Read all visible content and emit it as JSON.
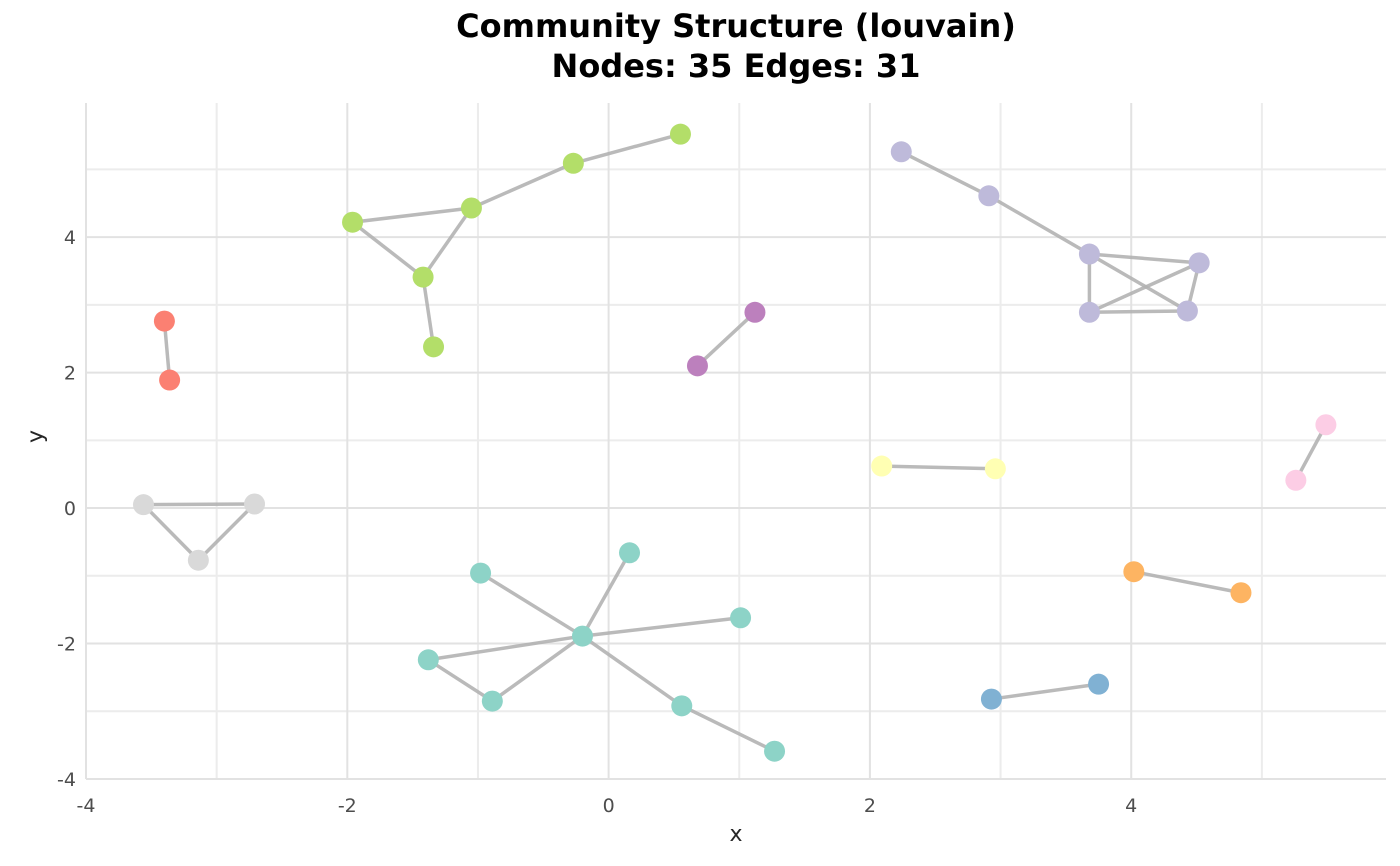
{
  "figure": {
    "title": "Community Structure (louvain)",
    "subtitle": "Nodes: 35 Edges: 31",
    "xlabel": "x",
    "ylabel": "y"
  },
  "chart_data": {
    "type": "scatter",
    "subtype": "network_graph",
    "title": "Community Structure (louvain)",
    "subtitle": "Nodes: 35 Edges: 31",
    "node_count": 35,
    "edge_count": 31,
    "xlabel": "x",
    "ylabel": "y",
    "xlim": [
      -4,
      5.95
    ],
    "ylim": [
      -4,
      5.98
    ],
    "xticks": [
      -4,
      -2,
      0,
      2,
      4
    ],
    "yticks": [
      -4,
      -2,
      0,
      2,
      4
    ],
    "grid": {
      "on": true,
      "interval": 1,
      "major_interval": 2,
      "major_color": "#e2e2e2",
      "minor_color": "#ececec"
    },
    "background_color": "#ffffff",
    "edge_color": "#b3b3b3",
    "communities": [
      {
        "name": "community-0-green",
        "color": "#b3de69"
      },
      {
        "name": "community-1-purple",
        "color": "#bc80bd"
      },
      {
        "name": "community-2-salmon",
        "color": "#fb8072"
      },
      {
        "name": "community-3-gray",
        "color": "#d9d9d9"
      },
      {
        "name": "community-4-teal",
        "color": "#8dd3c7"
      },
      {
        "name": "community-5-lavender",
        "color": "#bebada"
      },
      {
        "name": "community-6-yellow",
        "color": "#ffffb3"
      },
      {
        "name": "community-7-orange",
        "color": "#fdb462"
      },
      {
        "name": "community-8-blue",
        "color": "#80b1d3"
      },
      {
        "name": "community-9-pink",
        "color": "#fccde5"
      }
    ],
    "nodes": [
      {
        "x": 0.55,
        "y": 5.52,
        "c": 0
      },
      {
        "x": -0.27,
        "y": 5.09,
        "c": 0
      },
      {
        "x": -1.05,
        "y": 4.43,
        "c": 0
      },
      {
        "x": -1.96,
        "y": 4.22,
        "c": 0
      },
      {
        "x": -1.42,
        "y": 3.41,
        "c": 0
      },
      {
        "x": -1.34,
        "y": 2.38,
        "c": 0
      },
      {
        "x": 1.12,
        "y": 2.89,
        "c": 1
      },
      {
        "x": 0.68,
        "y": 2.1,
        "c": 1
      },
      {
        "x": -3.4,
        "y": 2.76,
        "c": 2
      },
      {
        "x": -3.36,
        "y": 1.89,
        "c": 2
      },
      {
        "x": -3.56,
        "y": 0.05,
        "c": 3
      },
      {
        "x": -2.71,
        "y": 0.06,
        "c": 3
      },
      {
        "x": -3.14,
        "y": -0.77,
        "c": 3
      },
      {
        "x": 0.16,
        "y": -0.66,
        "c": 4
      },
      {
        "x": -0.98,
        "y": -0.96,
        "c": 4
      },
      {
        "x": 1.01,
        "y": -1.62,
        "c": 4
      },
      {
        "x": -0.2,
        "y": -1.89,
        "c": 4
      },
      {
        "x": -1.38,
        "y": -2.24,
        "c": 4
      },
      {
        "x": -0.89,
        "y": -2.85,
        "c": 4
      },
      {
        "x": 0.56,
        "y": -2.92,
        "c": 4
      },
      {
        "x": 1.27,
        "y": -3.59,
        "c": 4
      },
      {
        "x": 2.24,
        "y": 5.26,
        "c": 5
      },
      {
        "x": 2.91,
        "y": 4.61,
        "c": 5
      },
      {
        "x": 3.68,
        "y": 3.75,
        "c": 5
      },
      {
        "x": 4.52,
        "y": 3.62,
        "c": 5
      },
      {
        "x": 3.68,
        "y": 2.89,
        "c": 5
      },
      {
        "x": 4.43,
        "y": 2.91,
        "c": 5
      },
      {
        "x": 2.09,
        "y": 0.62,
        "c": 6
      },
      {
        "x": 2.96,
        "y": 0.58,
        "c": 6
      },
      {
        "x": 4.02,
        "y": -0.94,
        "c": 7
      },
      {
        "x": 4.84,
        "y": -1.25,
        "c": 7
      },
      {
        "x": 2.93,
        "y": -2.82,
        "c": 8
      },
      {
        "x": 3.75,
        "y": -2.6,
        "c": 8
      },
      {
        "x": 5.49,
        "y": 1.23,
        "c": 9
      },
      {
        "x": 5.26,
        "y": 0.41,
        "c": 9
      }
    ],
    "edges": [
      [
        0,
        1
      ],
      [
        1,
        2
      ],
      [
        2,
        3
      ],
      [
        3,
        4
      ],
      [
        2,
        4
      ],
      [
        4,
        5
      ],
      [
        6,
        7
      ],
      [
        8,
        9
      ],
      [
        10,
        11
      ],
      [
        10,
        12
      ],
      [
        11,
        12
      ],
      [
        13,
        16
      ],
      [
        14,
        16
      ],
      [
        15,
        16
      ],
      [
        16,
        17
      ],
      [
        17,
        18
      ],
      [
        18,
        16
      ],
      [
        16,
        19
      ],
      [
        19,
        20
      ],
      [
        21,
        22
      ],
      [
        22,
        23
      ],
      [
        23,
        24
      ],
      [
        23,
        25
      ],
      [
        23,
        26
      ],
      [
        24,
        25
      ],
      [
        24,
        26
      ],
      [
        25,
        26
      ],
      [
        27,
        28
      ],
      [
        29,
        30
      ],
      [
        31,
        32
      ],
      [
        33,
        34
      ]
    ]
  }
}
